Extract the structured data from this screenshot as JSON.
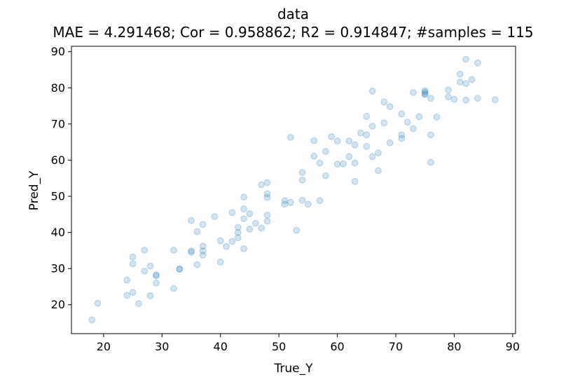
{
  "chart_data": {
    "type": "scatter",
    "title": "data",
    "subtitle": "MAE = 4.291468; Cor = 0.958862; R2 = 0.914847; #samples = 115",
    "xlabel": "True_Y",
    "ylabel": "Pred_Y",
    "xlim": [
      14.5,
      90.5
    ],
    "ylim": [
      12,
      91.5
    ],
    "xticks": [
      20,
      30,
      40,
      50,
      60,
      70,
      80,
      90
    ],
    "yticks": [
      20,
      30,
      40,
      50,
      60,
      70,
      80,
      90
    ],
    "grid": false,
    "legend": "none",
    "marker_color": "#1f77b4",
    "marker_alpha": 0.2,
    "points": [
      [
        18,
        15.8
      ],
      [
        19,
        20.4
      ],
      [
        24,
        26.8
      ],
      [
        24,
        22.6
      ],
      [
        25,
        33.2
      ],
      [
        25,
        31.3
      ],
      [
        25,
        23.4
      ],
      [
        26,
        20.3
      ],
      [
        27,
        35.1
      ],
      [
        27,
        29.3
      ],
      [
        28,
        30.7
      ],
      [
        28,
        22.5
      ],
      [
        29,
        28.3
      ],
      [
        29,
        28.0
      ],
      [
        29,
        26.0
      ],
      [
        32,
        35.1
      ],
      [
        32,
        24.5
      ],
      [
        33,
        29.8
      ],
      [
        33,
        29.9
      ],
      [
        35,
        43.3
      ],
      [
        35,
        34.9
      ],
      [
        35,
        34.5
      ],
      [
        36,
        40.2
      ],
      [
        36,
        31.1
      ],
      [
        37,
        42.2
      ],
      [
        37,
        36.2
      ],
      [
        37,
        34.9
      ],
      [
        37,
        33.7
      ],
      [
        39,
        44.4
      ],
      [
        40,
        37.7
      ],
      [
        40,
        31.8
      ],
      [
        41,
        36.1
      ],
      [
        42,
        45.5
      ],
      [
        42,
        37.5
      ],
      [
        43,
        41.4
      ],
      [
        43,
        40.0
      ],
      [
        43,
        38.5
      ],
      [
        44,
        49.8
      ],
      [
        44,
        46.5
      ],
      [
        44,
        43.8
      ],
      [
        44,
        35.5
      ],
      [
        45,
        45.2
      ],
      [
        45,
        40.9
      ],
      [
        46,
        42.5
      ],
      [
        47,
        53.2
      ],
      [
        47,
        41.2
      ],
      [
        48,
        53.8
      ],
      [
        48,
        50.7
      ],
      [
        48,
        49.7
      ],
      [
        48,
        44.8
      ],
      [
        48,
        43.1
      ],
      [
        51,
        48.8
      ],
      [
        51,
        47.8
      ],
      [
        52,
        66.3
      ],
      [
        52,
        48.3
      ],
      [
        53,
        40.6
      ],
      [
        54,
        56.6
      ],
      [
        54,
        54.5
      ],
      [
        54,
        48.9
      ],
      [
        55,
        47.8
      ],
      [
        56,
        65.4
      ],
      [
        56,
        61.1
      ],
      [
        57,
        59.2
      ],
      [
        57,
        48.8
      ],
      [
        58,
        62.4
      ],
      [
        58,
        55.7
      ],
      [
        59,
        66.5
      ],
      [
        60,
        65.3
      ],
      [
        60,
        58.9
      ],
      [
        61,
        59.0
      ],
      [
        62,
        65.3
      ],
      [
        62,
        61.0
      ],
      [
        63,
        64.2
      ],
      [
        63,
        59.2
      ],
      [
        63,
        54.1
      ],
      [
        64,
        67.5
      ],
      [
        65,
        72.1
      ],
      [
        65,
        67.0
      ],
      [
        65,
        63.8
      ],
      [
        66,
        79.1
      ],
      [
        66,
        69.4
      ],
      [
        66,
        61.0
      ],
      [
        67,
        62.0
      ],
      [
        67,
        57.1
      ],
      [
        68,
        76.1
      ],
      [
        68,
        70.3
      ],
      [
        69,
        74.8
      ],
      [
        69,
        64.8
      ],
      [
        71,
        72.8
      ],
      [
        71,
        67.0
      ],
      [
        71,
        66.0
      ],
      [
        72,
        70.5
      ],
      [
        73,
        78.7
      ],
      [
        73,
        68.7
      ],
      [
        74,
        72.0
      ],
      [
        75,
        79.2
      ],
      [
        75,
        78.8
      ],
      [
        75,
        78.4
      ],
      [
        75,
        78.1
      ],
      [
        76,
        77.1
      ],
      [
        76,
        67.0
      ],
      [
        76,
        59.4
      ],
      [
        77,
        71.9
      ],
      [
        79,
        79.4
      ],
      [
        79,
        77.5
      ],
      [
        80,
        76.8
      ],
      [
        81,
        83.8
      ],
      [
        81,
        81.6
      ],
      [
        82,
        87.9
      ],
      [
        82,
        81.2
      ],
      [
        82,
        76.6
      ],
      [
        83,
        82.3
      ],
      [
        84,
        86.9
      ],
      [
        84,
        77.1
      ],
      [
        87,
        76.7
      ]
    ]
  }
}
